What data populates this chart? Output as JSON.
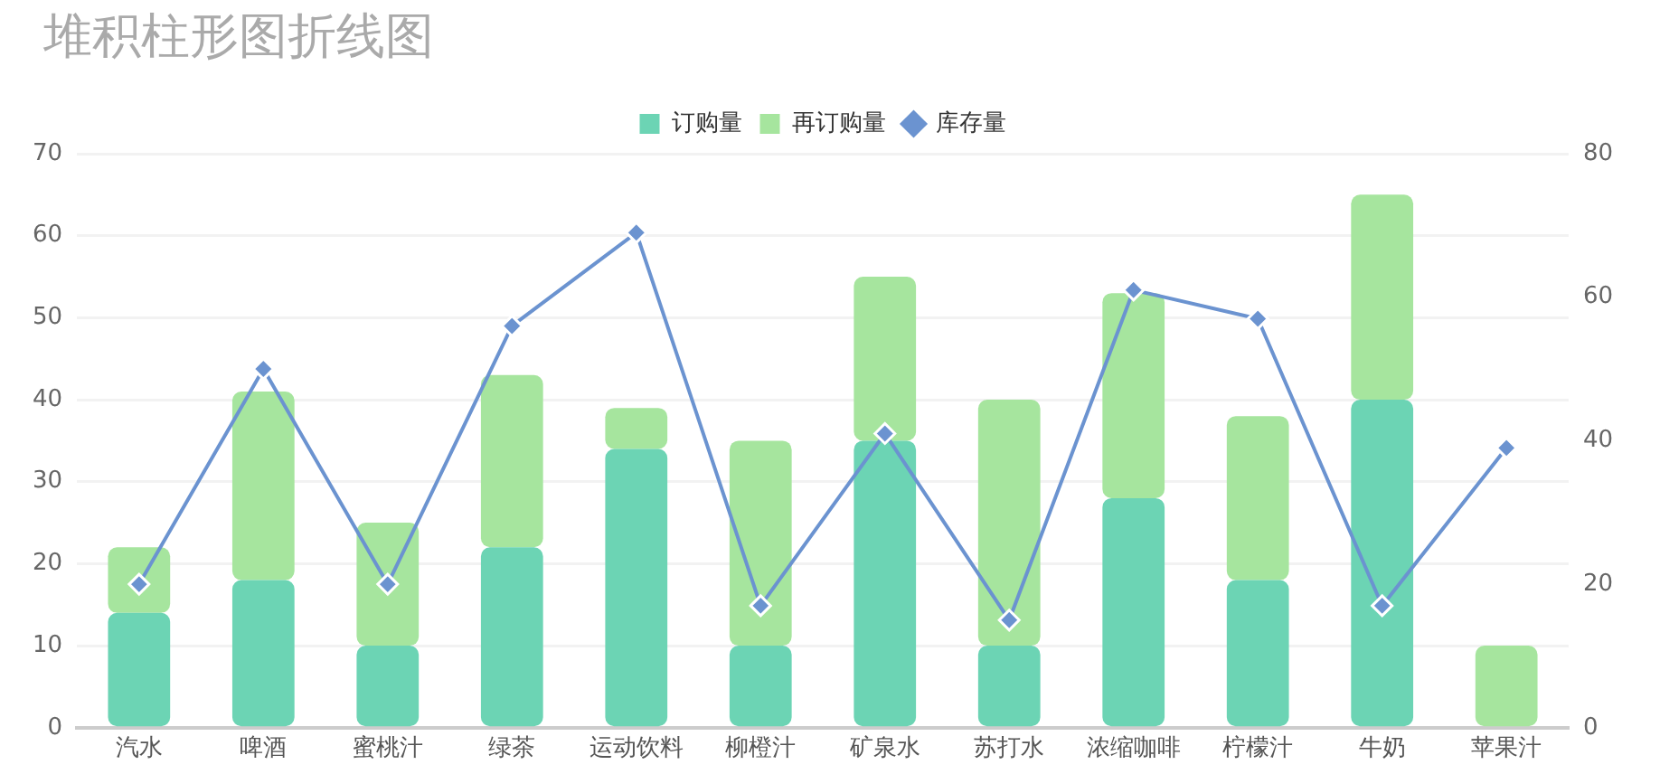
{
  "chart_data": {
    "type": "bar",
    "title": "堆积柱形图折线图",
    "categories": [
      "汽水",
      "啤酒",
      "蜜桃汁",
      "绿茶",
      "运动饮料",
      "柳橙汁",
      "矿泉水",
      "苏打水",
      "浓缩咖啡",
      "柠檬汁",
      "牛奶",
      "苹果汁"
    ],
    "stacked": true,
    "series": [
      {
        "name": "订购量",
        "color": "#6cd4b4",
        "values": [
          14,
          18,
          10,
          22,
          34,
          10,
          35,
          10,
          28,
          18,
          40,
          0
        ]
      },
      {
        "name": "再订购量",
        "color": "#a6e59e",
        "values": [
          8,
          23,
          15,
          21,
          5,
          25,
          20,
          30,
          25,
          20,
          25,
          10
        ]
      },
      {
        "name": "库存量",
        "type": "line",
        "axis": "y2",
        "color": "#6b93d0",
        "values": [
          20,
          50,
          20,
          56,
          69,
          17,
          41,
          15,
          61,
          57,
          17,
          39
        ]
      }
    ],
    "ylim": [
      0,
      70
    ],
    "yticks": [
      0,
      10,
      20,
      30,
      40,
      50,
      60,
      70
    ],
    "y2lim": [
      0,
      80
    ],
    "y2ticks": [
      0,
      20,
      40,
      60,
      80
    ],
    "grid": "y",
    "legend": "top",
    "marker": "diamond"
  }
}
